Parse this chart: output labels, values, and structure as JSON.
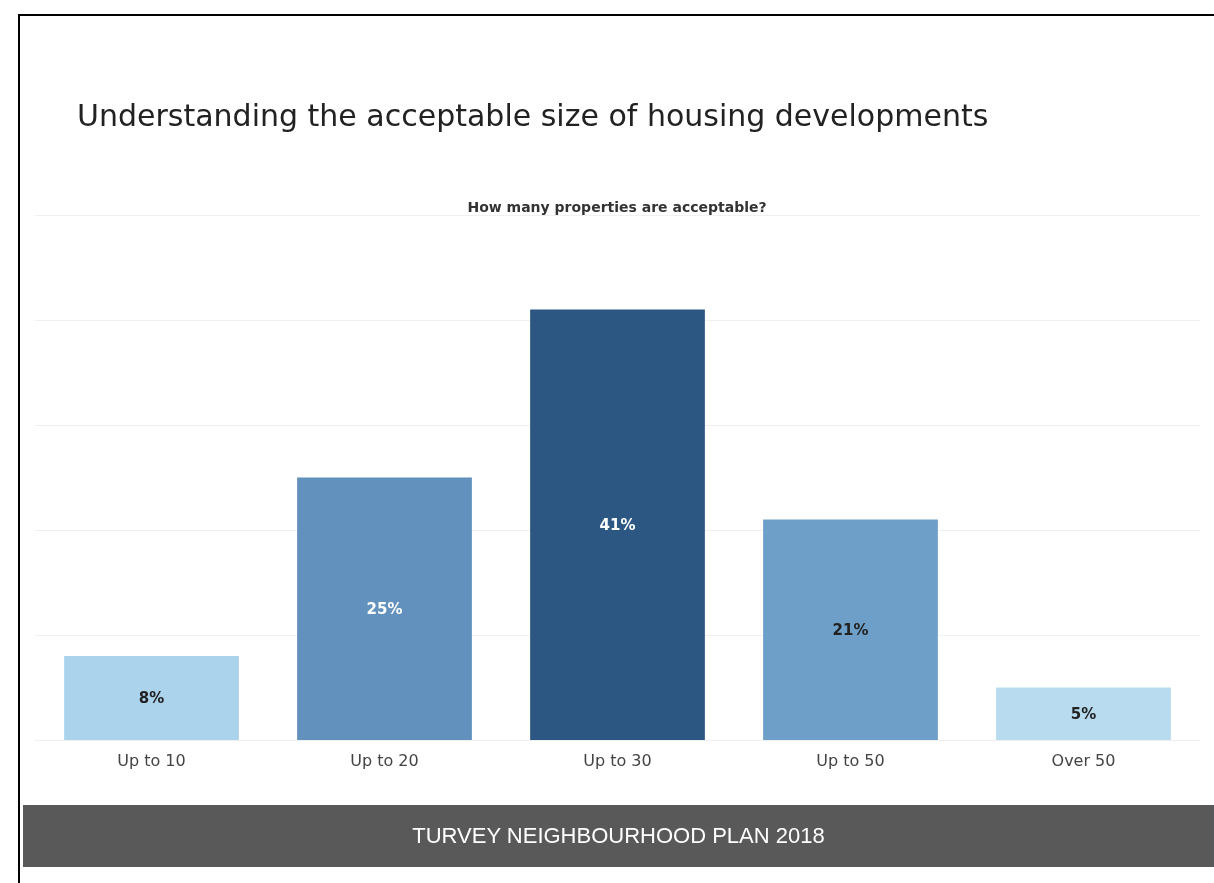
{
  "chart_data": {
    "type": "bar",
    "title": "Understanding the acceptable size of housing developments",
    "subtitle": "How many properties are acceptable?",
    "categories": [
      "Up to 10",
      "Up to 20",
      "Up to 30",
      "Up to 50",
      "Over 50"
    ],
    "values": [
      8,
      25,
      41,
      21,
      5
    ],
    "value_labels": [
      "8%",
      "25%",
      "41%",
      "21%",
      "5%"
    ],
    "colors": [
      "#abd3ec",
      "#6191bc",
      "#2c5783",
      "#6e9fc8",
      "#b8dbf0"
    ],
    "relative": false,
    "tick_labels": "x",
    "grid": "y",
    "annotations": [
      "TURVEY NEIGHBOURHOOD PLAN 2018"
    ]
  }
}
